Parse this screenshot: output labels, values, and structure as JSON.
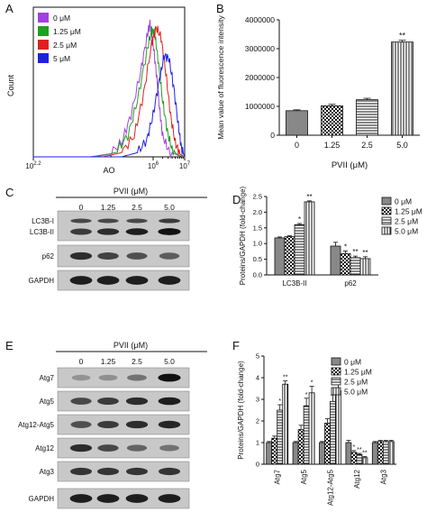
{
  "panels": {
    "A": "A",
    "B": "B",
    "C": "C",
    "D": "D",
    "E": "E",
    "F": "F"
  },
  "histogram": {
    "ylabel": "Count",
    "xlabel": "AO",
    "x_ticks": [
      "10^2.2",
      "10^6",
      "10^7"
    ],
    "legend": [
      {
        "label": "0 μM",
        "color": "#a040e0"
      },
      {
        "label": "1.25 μM",
        "color": "#20a020"
      },
      {
        "label": "2.5 μM",
        "color": "#e02020"
      },
      {
        "label": "5 μM",
        "color": "#2020e0"
      }
    ]
  },
  "blot_c": {
    "title": "PVII (μM)",
    "lanes": [
      "0",
      "1.25",
      "2.5",
      "5.0"
    ],
    "rows": [
      "LC3B-I",
      "LC3B-II",
      "p62",
      "GAPDH"
    ]
  },
  "blot_e": {
    "title": "PVII (μM)",
    "lanes": [
      "0",
      "1.25",
      "2.5",
      "5.0"
    ],
    "rows": [
      "Atg7",
      "Atg5",
      "Atg12-Atg5",
      "Atg12",
      "Atg3",
      "GAPDH"
    ]
  },
  "chart_data": [
    {
      "type": "line",
      "panel": "A",
      "xlabel": "AO",
      "ylabel": "Count",
      "x_scale": "log",
      "series": [
        {
          "name": "0 μM",
          "color": "#a040e0",
          "x_log": [
            2.2,
            4.0,
            4.6,
            5.0,
            5.3,
            5.6,
            5.8,
            5.9,
            6.0,
            6.1,
            6.2,
            6.3,
            6.5,
            6.8,
            7.0
          ],
          "count": [
            0,
            0,
            2,
            10,
            30,
            60,
            85,
            95,
            80,
            60,
            35,
            15,
            4,
            1,
            0
          ]
        },
        {
          "name": "1.25 μM",
          "color": "#20a020",
          "x_log": [
            2.2,
            4.2,
            4.8,
            5.2,
            5.5,
            5.8,
            5.95,
            6.05,
            6.15,
            6.3,
            6.45,
            6.6,
            6.8,
            7.0
          ],
          "count": [
            0,
            0,
            3,
            15,
            40,
            75,
            90,
            88,
            70,
            40,
            18,
            5,
            1,
            0
          ]
        },
        {
          "name": "2.5 μM",
          "color": "#e02020",
          "x_log": [
            2.2,
            4.4,
            5.0,
            5.4,
            5.7,
            5.95,
            6.1,
            6.25,
            6.4,
            6.55,
            6.7,
            6.85,
            7.0
          ],
          "count": [
            0,
            0,
            3,
            15,
            45,
            80,
            92,
            85,
            60,
            30,
            10,
            2,
            0
          ]
        },
        {
          "name": "5 μM",
          "color": "#2020e0",
          "x_log": [
            2.2,
            5.0,
            5.5,
            5.8,
            6.0,
            6.2,
            6.35,
            6.5,
            6.65,
            6.8,
            6.9,
            7.0
          ],
          "count": [
            0,
            0,
            3,
            12,
            30,
            55,
            72,
            70,
            50,
            22,
            6,
            0
          ]
        }
      ]
    },
    {
      "type": "bar",
      "panel": "B",
      "title": "",
      "xlabel": "PVII (μM)",
      "ylabel": "Mean value of fluorescence intensity",
      "categories": [
        "0",
        "1.25",
        "2.5",
        "5.0"
      ],
      "values": [
        850000,
        1020000,
        1230000,
        3230000
      ],
      "errors": [
        30000,
        50000,
        50000,
        60000
      ],
      "significance": [
        "",
        "",
        "",
        "**"
      ],
      "y_ticks": [
        0,
        1000000,
        2000000,
        3000000,
        4000000
      ],
      "ylim": [
        0,
        4000000
      ]
    },
    {
      "type": "bar",
      "panel": "D",
      "ylabel": "Proteins/GAPDH (fold-change)",
      "categories": [
        "LC3B-II",
        "p62"
      ],
      "y_ticks": [
        "0.0",
        "0.5",
        "1.0",
        "1.5",
        "2.0",
        "2.5"
      ],
      "ylim": [
        0,
        2.5
      ],
      "series": [
        {
          "name": "0 μM",
          "values": [
            1.18,
            0.92
          ],
          "errors": [
            0.03,
            0.12
          ],
          "significance": [
            "",
            ""
          ]
        },
        {
          "name": "1.25 μM",
          "values": [
            1.22,
            0.68
          ],
          "errors": [
            0.03,
            0.08
          ],
          "significance": [
            "",
            "*"
          ]
        },
        {
          "name": "2.5 μM",
          "values": [
            1.6,
            0.55
          ],
          "errors": [
            0.04,
            0.05
          ],
          "significance": [
            "*",
            "**"
          ]
        },
        {
          "name": "5.0 μM",
          "values": [
            2.33,
            0.52
          ],
          "errors": [
            0.03,
            0.06
          ],
          "significance": [
            "**",
            "**"
          ]
        }
      ]
    },
    {
      "type": "bar",
      "panel": "F",
      "ylabel": "Proteins/GAPDH (fold-change)",
      "categories": [
        "Atg7",
        "Atg5",
        "Atg12-Atg5",
        "Atg12",
        "Atg3"
      ],
      "y_ticks": [
        "0",
        "1",
        "2",
        "3",
        "4",
        "5"
      ],
      "ylim": [
        0,
        5
      ],
      "series": [
        {
          "name": "0 μM",
          "values": [
            1.0,
            1.0,
            1.0,
            1.0,
            1.0
          ],
          "errors": [
            0.05,
            0.05,
            0.05,
            0.1,
            0.05
          ],
          "significance": [
            "",
            "",
            "",
            "",
            ""
          ]
        },
        {
          "name": "1.25 μM",
          "values": [
            1.2,
            1.6,
            1.9,
            0.55,
            1.05
          ],
          "errors": [
            0.1,
            0.2,
            0.2,
            0.08,
            0.05
          ],
          "significance": [
            "",
            "",
            "",
            "*",
            ""
          ]
        },
        {
          "name": "2.5 μM",
          "values": [
            2.5,
            2.7,
            2.9,
            0.45,
            1.05
          ],
          "errors": [
            0.25,
            0.35,
            0.3,
            0.05,
            0.05
          ],
          "significance": [
            "*",
            "*",
            "*",
            "**",
            ""
          ]
        },
        {
          "name": "5.0 μM",
          "values": [
            3.7,
            3.3,
            3.4,
            0.3,
            1.05
          ],
          "errors": [
            0.15,
            0.3,
            0.3,
            0.05,
            0.05
          ],
          "significance": [
            "**",
            "*",
            "*",
            "**",
            ""
          ]
        }
      ]
    }
  ]
}
